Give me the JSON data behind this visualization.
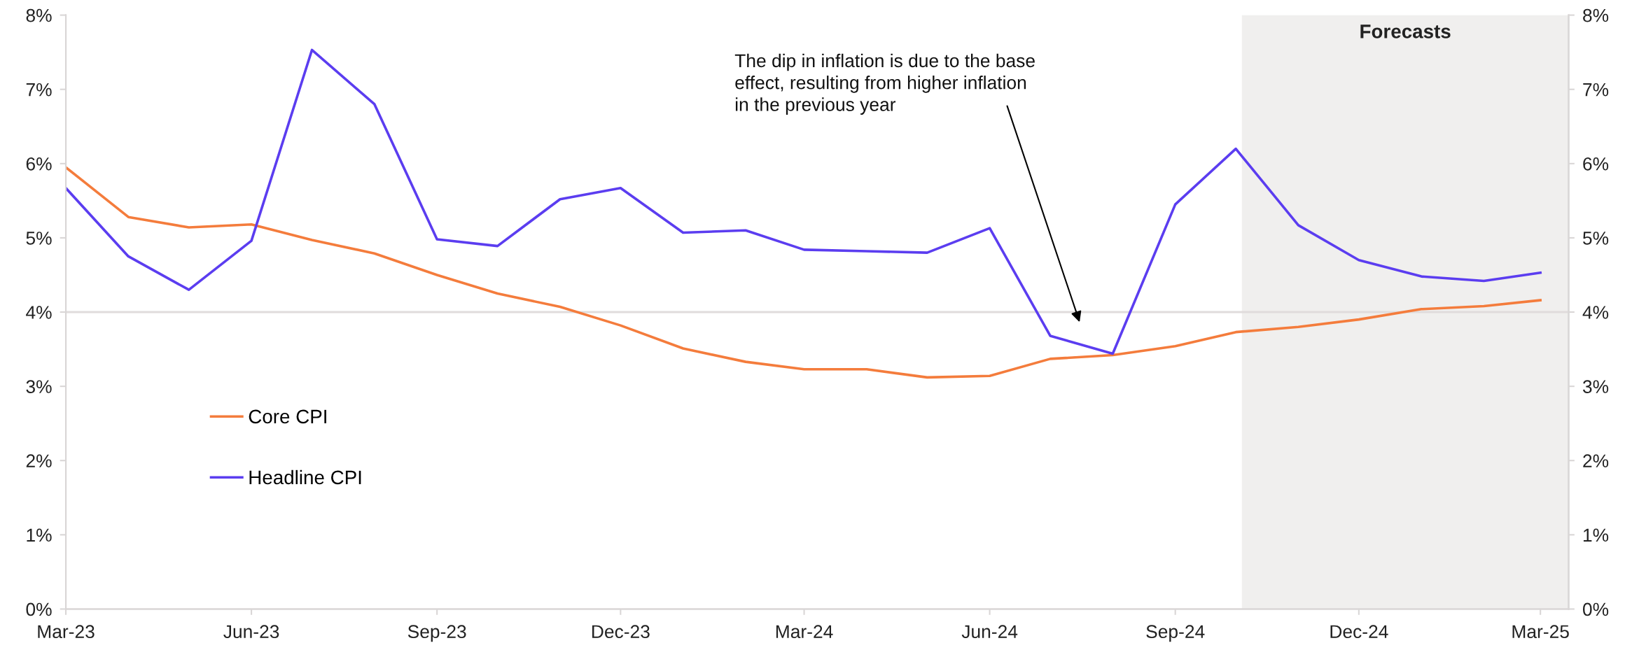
{
  "chart_data": {
    "type": "line",
    "x": [
      "2023-03",
      "2023-04",
      "2023-05",
      "2023-06",
      "2023-07",
      "2023-08",
      "2023-09",
      "2023-10",
      "2023-11",
      "2023-12",
      "2024-01",
      "2024-02",
      "2024-03",
      "2024-04",
      "2024-05",
      "2024-06",
      "2024-07",
      "2024-08",
      "2024-09",
      "2024-10",
      "2024-11",
      "2024-12",
      "2025-01",
      "2025-02",
      "2025-03"
    ],
    "series": [
      {
        "name": "Core CPI",
        "color": "#f47c3c",
        "values": [
          5.95,
          5.28,
          5.14,
          5.18,
          4.97,
          4.79,
          4.5,
          4.25,
          4.07,
          3.82,
          3.51,
          3.33,
          3.23,
          3.23,
          3.12,
          3.14,
          3.37,
          3.42,
          3.54,
          3.73,
          3.8,
          3.9,
          4.04,
          4.08,
          4.16
        ]
      },
      {
        "name": "Headline CPI",
        "color": "#5b3df0",
        "values": [
          5.67,
          4.75,
          4.3,
          4.96,
          7.53,
          6.8,
          4.98,
          4.89,
          5.52,
          5.67,
          5.07,
          5.1,
          4.84,
          4.82,
          4.8,
          5.13,
          3.68,
          3.44,
          5.45,
          6.2,
          5.17,
          4.7,
          4.48,
          4.42,
          4.53
        ]
      }
    ],
    "xlim": [
      "2023-03",
      "2025-03-15"
    ],
    "xticks": [
      {
        "value": "2023-03",
        "label": "Mar-23"
      },
      {
        "value": "2023-06",
        "label": "Jun-23"
      },
      {
        "value": "2023-09",
        "label": "Sep-23"
      },
      {
        "value": "2023-12",
        "label": "Dec-23"
      },
      {
        "value": "2024-03",
        "label": "Mar-24"
      },
      {
        "value": "2024-06",
        "label": "Jun-24"
      },
      {
        "value": "2024-09",
        "label": "Sep-24"
      },
      {
        "value": "2024-12",
        "label": "Dec-24"
      },
      {
        "value": "2025-03",
        "label": "Mar-25"
      }
    ],
    "ylim": [
      0,
      8
    ],
    "yticks": [
      {
        "value": 0,
        "label": "0%"
      },
      {
        "value": 1,
        "label": "1%"
      },
      {
        "value": 2,
        "label": "2%"
      },
      {
        "value": 3,
        "label": "3%"
      },
      {
        "value": 4,
        "label": "4%"
      },
      {
        "value": 5,
        "label": "5%"
      },
      {
        "value": 6,
        "label": "6%"
      },
      {
        "value": 7,
        "label": "7%"
      },
      {
        "value": 8,
        "label": "8%"
      }
    ],
    "y2lim": [
      0,
      8
    ],
    "y2ticks": [
      {
        "value": 0,
        "label": "0%"
      },
      {
        "value": 1,
        "label": "1%"
      },
      {
        "value": 2,
        "label": "2%"
      },
      {
        "value": 3,
        "label": "3%"
      },
      {
        "value": 4,
        "label": "4%"
      },
      {
        "value": 5,
        "label": "5%"
      },
      {
        "value": 6,
        "label": "6%"
      },
      {
        "value": 7,
        "label": "7%"
      },
      {
        "value": 8,
        "label": "8%"
      }
    ],
    "bands": [
      {
        "axis": "x",
        "from": "2024-10-04",
        "to": "2025-03-15",
        "label": "Forecasts",
        "color": "#f0efee"
      }
    ],
    "ref_lines": [
      {
        "axis": "y",
        "value": 4,
        "color": "#e0dcdc"
      }
    ],
    "annotations": [
      "The dip in inflation is due to the base\neffect, resulting from higher inflation\nin the previous year"
    ],
    "legend": "left",
    "grid": false,
    "marker": "none",
    "line_style": "solid"
  }
}
